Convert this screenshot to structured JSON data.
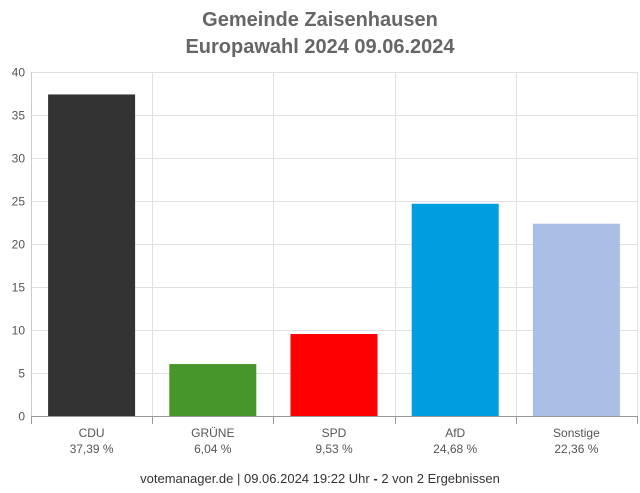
{
  "header": {
    "title_line1": "Gemeinde Zaisenhausen",
    "title_line2": "Europawahl 2024 09.06.2024"
  },
  "footer": {
    "text_before": "votemanager.de | 09.06.2024 19:22 Uhr ",
    "separator": "-",
    "text_after": " 2 von 2 Ergebnissen"
  },
  "chart_data": {
    "type": "bar",
    "title": "Gemeinde Zaisenhausen Europawahl 2024 09.06.2024",
    "categories": [
      "CDU",
      "GRÜNE",
      "SPD",
      "AfD",
      "Sonstige"
    ],
    "values": [
      37.39,
      6.04,
      9.53,
      24.68,
      22.36
    ],
    "value_labels": [
      "37,39 %",
      "6,04 %",
      "9,53 %",
      "24,68 %",
      "22,36 %"
    ],
    "colors": [
      "#333333",
      "#46962b",
      "#ff0000",
      "#009ee0",
      "#aabfe6"
    ],
    "ylim": [
      0,
      40
    ],
    "yticks": [
      0,
      5,
      10,
      15,
      20,
      25,
      30,
      35,
      40
    ],
    "grid": true,
    "legend": "none"
  }
}
